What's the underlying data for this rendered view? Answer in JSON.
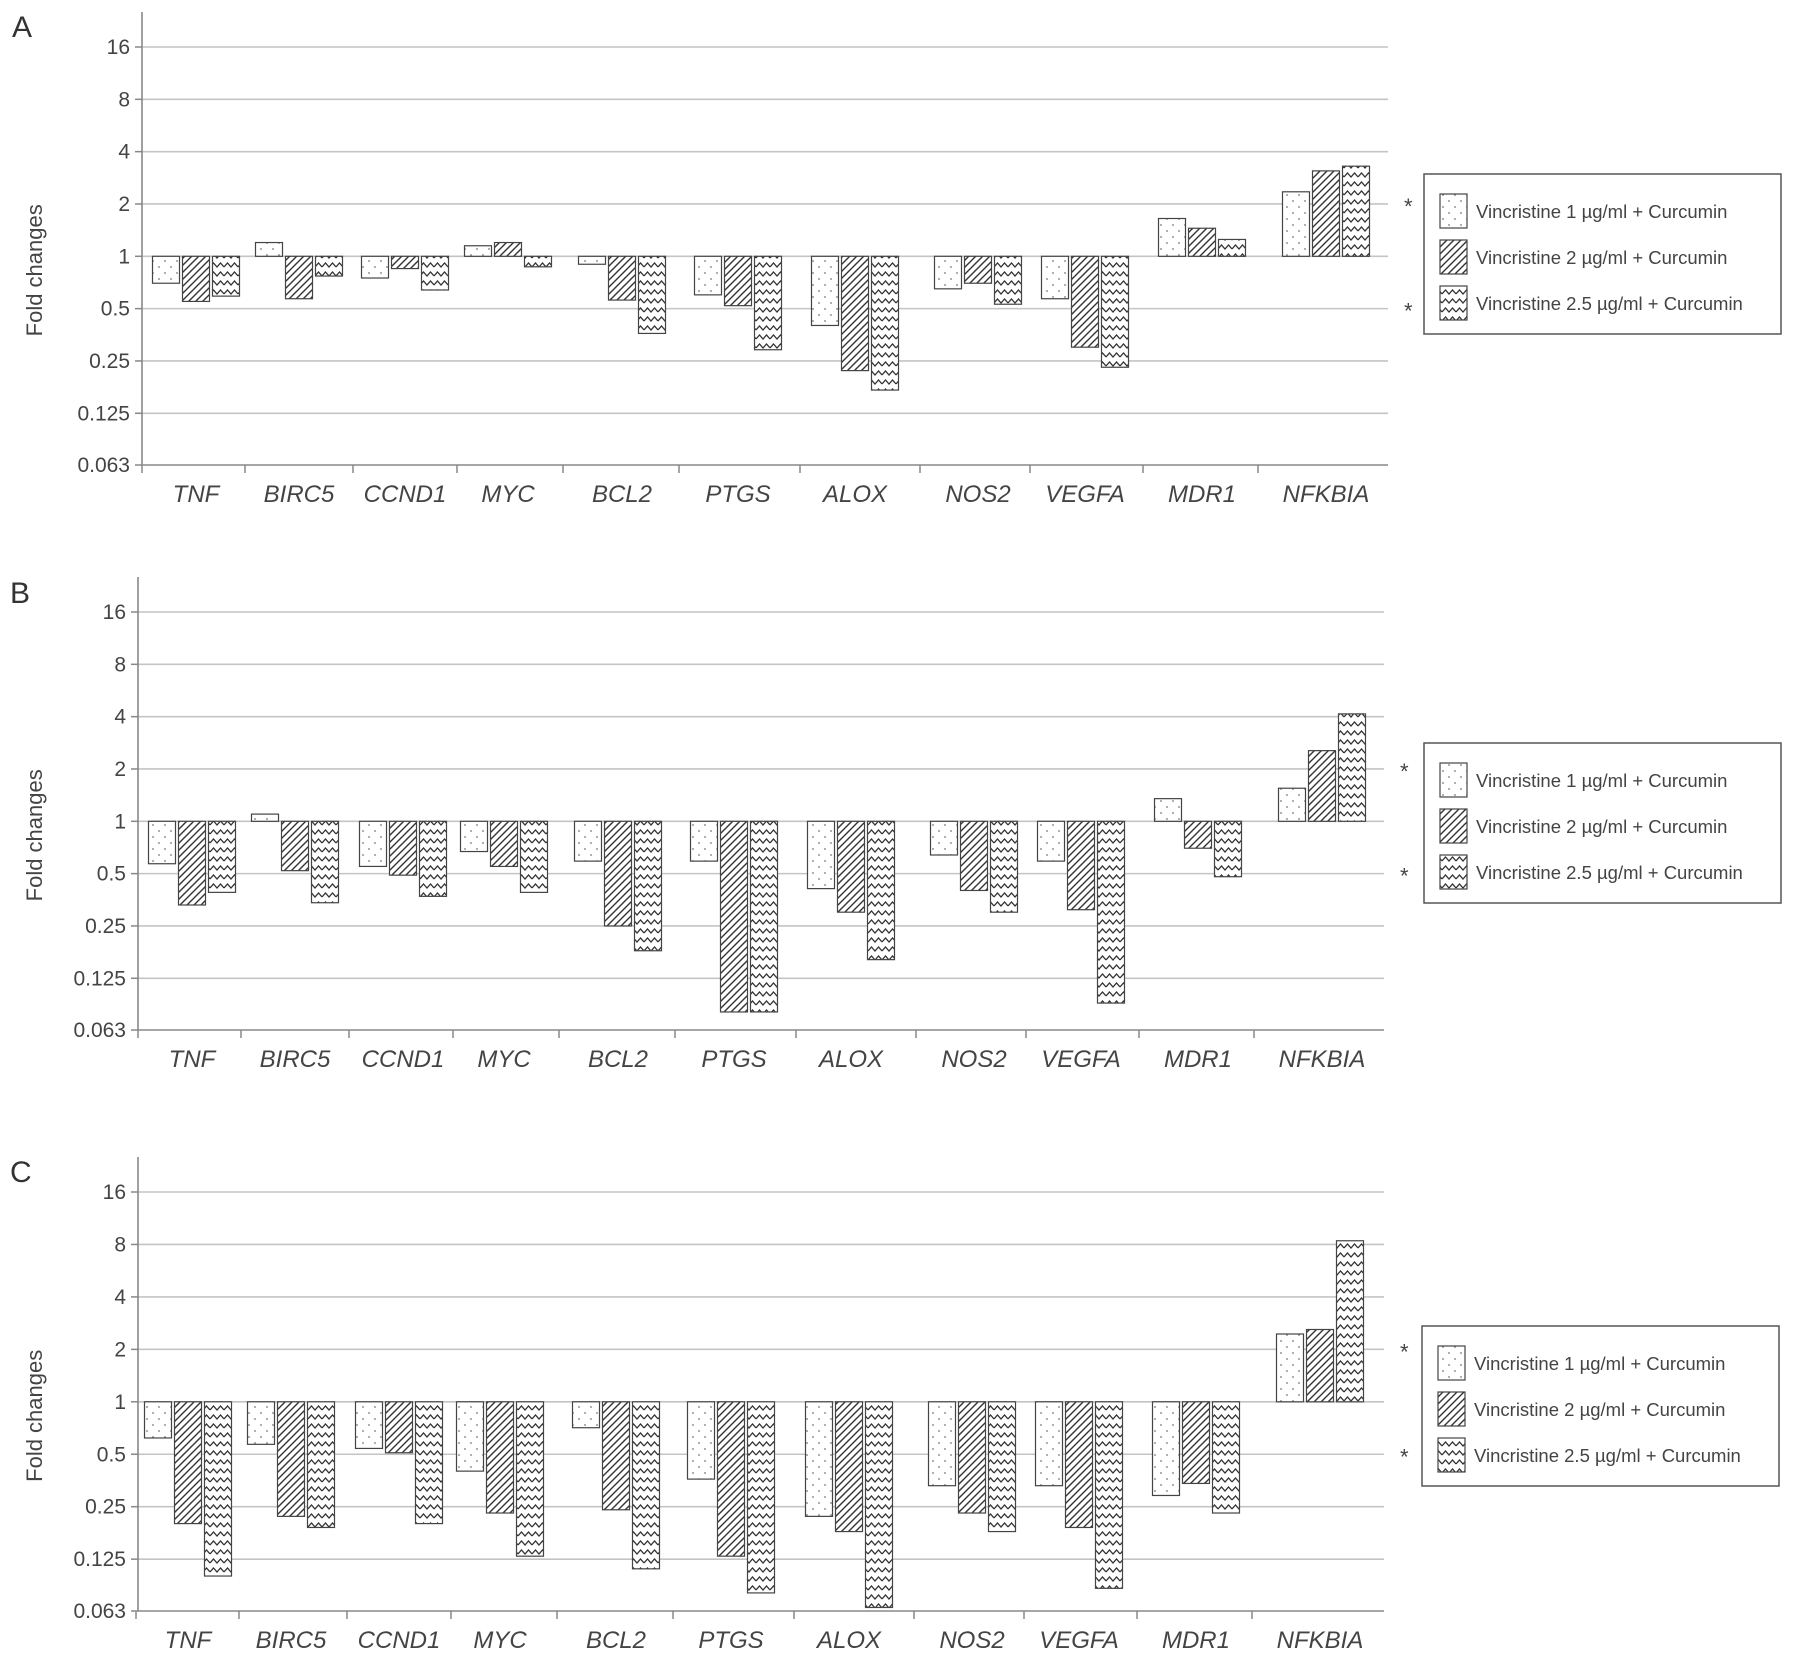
{
  "chart_data": [
    {
      "panel": "A",
      "type": "bar",
      "yscale": "log2",
      "ylim": [
        0.063,
        16
      ],
      "yticks": [
        "16",
        "8",
        "4",
        "2",
        "1",
        "0.5",
        "0.25",
        "0.125",
        "0.063"
      ],
      "ylabel": "Fold changes",
      "categories": [
        "TNF",
        "BIRC5",
        "CCND1",
        "MYC",
        "BCL2",
        "PTGS",
        "ALOX",
        "NOS2",
        "VEGFA",
        "MDR1",
        "NFKBIA"
      ],
      "series": [
        {
          "name": "Vincristine 1 µg/ml + Curcumin",
          "values": [
            0.7,
            1.2,
            0.75,
            1.15,
            0.9,
            0.6,
            0.4,
            0.65,
            0.57,
            1.65,
            2.35
          ]
        },
        {
          "name": "Vincristine 2 µg/ml  + Curcumin",
          "values": [
            0.55,
            0.57,
            0.85,
            1.2,
            0.56,
            0.52,
            0.22,
            0.7,
            0.3,
            1.45,
            3.1
          ]
        },
        {
          "name": "Vincristine 2.5 µg/ml + Curcumin",
          "values": [
            0.59,
            0.77,
            0.64,
            0.87,
            0.36,
            0.29,
            0.17,
            0.53,
            0.23,
            1.25,
            3.3
          ]
        }
      ],
      "legend_position": "right",
      "annotations": [
        "*",
        "*"
      ]
    },
    {
      "panel": "B",
      "type": "bar",
      "yscale": "log2",
      "ylim": [
        0.063,
        16
      ],
      "yticks": [
        "16",
        "8",
        "4",
        "2",
        "1",
        "0.5",
        "0.25",
        "0.125",
        "0.063"
      ],
      "ylabel": "Fold changes",
      "categories": [
        "TNF",
        "BIRC5",
        "CCND1",
        "MYC",
        "BCL2",
        "PTGS",
        "ALOX",
        "NOS2",
        "VEGFA",
        "MDR1",
        "NFKBIA"
      ],
      "series": [
        {
          "name": "Vincristine 1 µg/ml + Curcumin",
          "values": [
            0.57,
            1.1,
            0.55,
            0.67,
            0.59,
            0.59,
            0.41,
            0.64,
            0.59,
            1.35,
            1.55
          ]
        },
        {
          "name": "Vincristine 2 µg/ml  + Curcumin",
          "values": [
            0.33,
            0.52,
            0.49,
            0.55,
            0.25,
            0.08,
            0.3,
            0.4,
            0.31,
            0.7,
            2.55
          ]
        },
        {
          "name": "Vincristine 2.5 µg/ml + Curcumin",
          "values": [
            0.39,
            0.34,
            0.37,
            0.39,
            0.18,
            0.08,
            0.16,
            0.3,
            0.09,
            0.48,
            4.15
          ]
        }
      ],
      "legend_position": "right",
      "annotations": [
        "*",
        "*"
      ]
    },
    {
      "panel": "C",
      "type": "bar",
      "yscale": "log2",
      "ylim": [
        0.063,
        16
      ],
      "yticks": [
        "16",
        "8",
        "4",
        "2",
        "1",
        "0.5",
        "0.25",
        "0.125",
        "0.063"
      ],
      "ylabel": "Fold changes",
      "categories": [
        "TNF",
        "BIRC5",
        "CCND1",
        "MYC",
        "BCL2",
        "PTGS",
        "ALOX",
        "NOS2",
        "VEGFA",
        "MDR1",
        "NFKBIA"
      ],
      "series": [
        {
          "name": "Vincristine 1 µg/ml + Curcumin",
          "values": [
            0.62,
            0.57,
            0.54,
            0.4,
            0.71,
            0.36,
            0.22,
            0.33,
            0.33,
            0.29,
            2.45
          ]
        },
        {
          "name": "Vincristine 2 µg/ml  + Curcumin",
          "values": [
            0.2,
            0.22,
            0.51,
            0.23,
            0.24,
            0.13,
            0.18,
            0.23,
            0.19,
            0.34,
            2.6
          ]
        },
        {
          "name": "Vincristine 2.5 µg/ml + Curcumin",
          "values": [
            0.1,
            0.19,
            0.2,
            0.13,
            0.11,
            0.08,
            0.066,
            0.18,
            0.085,
            0.23,
            8.4
          ]
        }
      ],
      "legend_position": "right",
      "annotations": [
        "*",
        "*"
      ]
    }
  ]
}
